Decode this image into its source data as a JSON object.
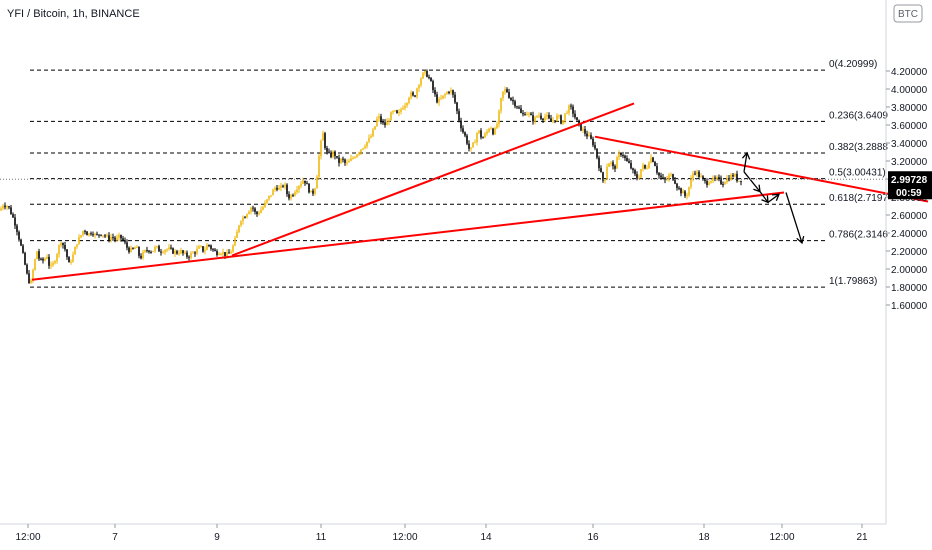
{
  "chart_data": {
    "type": "candlestick",
    "title": "YFI / Bitcoin, 1h, BINANCE",
    "currency_button": "BTC",
    "ylim": [
      1.55,
      4.38
    ],
    "y_ticks": [
      "4.20000",
      "4.00000",
      "3.80000",
      "3.60000",
      "3.40000",
      "3.20000",
      "3.00000",
      "2.80000",
      "2.60000",
      "2.40000",
      "2.20000",
      "2.00000",
      "1.80000",
      "1.60000"
    ],
    "x_ticks": [
      "12:00",
      "7",
      "9",
      "11",
      "12:00",
      "14",
      "16",
      "18",
      "12:00",
      "21"
    ],
    "last_price": "2.99728",
    "countdown": "00:59",
    "colors": {
      "up_candle": "#f0b90b",
      "down_candle": "#000000",
      "trendline": "#ff0000",
      "fib_line": "#000000",
      "price_badge": "#000000",
      "current_price_line": "#555555"
    },
    "fib_levels": [
      {
        "label": "0(4.20999)",
        "value": 4.20999
      },
      {
        "label": "0.236(3.6409",
        "value": 3.6409
      },
      {
        "label": "0.382(3.2888",
        "value": 3.2888
      },
      {
        "label": "0.5(3.00431)",
        "value": 3.00431
      },
      {
        "label": "0.618(2.7197",
        "value": 2.7197
      },
      {
        "label": "0.786(2.3146",
        "value": 2.3146
      },
      {
        "label": "1(1.79863)",
        "value": 1.79863
      }
    ],
    "price_path": [
      [
        0,
        2.65
      ],
      [
        3,
        2.72
      ],
      [
        8,
        2.7
      ],
      [
        12,
        2.6
      ],
      [
        16,
        2.48
      ],
      [
        20,
        2.3
      ],
      [
        24,
        2.1
      ],
      [
        28,
        1.88
      ],
      [
        31,
        1.85
      ],
      [
        34,
        2.05
      ],
      [
        37,
        2.2
      ],
      [
        40,
        2.08
      ],
      [
        44,
        2.1
      ],
      [
        47,
        2.15
      ],
      [
        50,
        2.0
      ],
      [
        53,
        2.05
      ],
      [
        57,
        2.18
      ],
      [
        61,
        2.32
      ],
      [
        65,
        2.22
      ],
      [
        69,
        2.05
      ],
      [
        73,
        2.15
      ],
      [
        77,
        2.3
      ],
      [
        80,
        2.35
      ],
      [
        84,
        2.45
      ],
      [
        88,
        2.38
      ],
      [
        92,
        2.42
      ],
      [
        96,
        2.36
      ],
      [
        100,
        2.4
      ],
      [
        104,
        2.38
      ],
      [
        108,
        2.34
      ],
      [
        112,
        2.36
      ],
      [
        116,
        2.32
      ],
      [
        120,
        2.36
      ],
      [
        124,
        2.3
      ],
      [
        128,
        2.22
      ],
      [
        132,
        2.2
      ],
      [
        136,
        2.25
      ],
      [
        140,
        2.12
      ],
      [
        144,
        2.18
      ],
      [
        148,
        2.22
      ],
      [
        152,
        2.2
      ],
      [
        156,
        2.24
      ],
      [
        160,
        2.2
      ],
      [
        164,
        2.22
      ],
      [
        168,
        2.22
      ],
      [
        172,
        2.2
      ],
      [
        176,
        2.18
      ],
      [
        180,
        2.2
      ],
      [
        184,
        2.16
      ],
      [
        188,
        2.14
      ],
      [
        192,
        2.17
      ],
      [
        196,
        2.2
      ],
      [
        200,
        2.24
      ],
      [
        204,
        2.2
      ],
      [
        208,
        2.28
      ],
      [
        212,
        2.22
      ],
      [
        216,
        2.18
      ],
      [
        220,
        2.2
      ],
      [
        224,
        2.17
      ],
      [
        228,
        2.15
      ],
      [
        232,
        2.22
      ],
      [
        236,
        2.35
      ],
      [
        240,
        2.55
      ],
      [
        244,
        2.58
      ],
      [
        248,
        2.65
      ],
      [
        252,
        2.7
      ],
      [
        256,
        2.6
      ],
      [
        260,
        2.65
      ],
      [
        264,
        2.7
      ],
      [
        268,
        2.78
      ],
      [
        272,
        2.85
      ],
      [
        276,
        2.92
      ],
      [
        280,
        2.88
      ],
      [
        284,
        2.95
      ],
      [
        288,
        2.8
      ],
      [
        292,
        2.82
      ],
      [
        296,
        2.9
      ],
      [
        300,
        2.95
      ],
      [
        304,
        3.0
      ],
      [
        308,
        2.9
      ],
      [
        312,
        2.82
      ],
      [
        316,
        2.95
      ],
      [
        320,
        3.35
      ],
      [
        323,
        3.5
      ],
      [
        326,
        3.3
      ],
      [
        330,
        3.25
      ],
      [
        334,
        3.3
      ],
      [
        338,
        3.18
      ],
      [
        342,
        3.22
      ],
      [
        346,
        3.16
      ],
      [
        350,
        3.2
      ],
      [
        354,
        3.25
      ],
      [
        358,
        3.3
      ],
      [
        362,
        3.35
      ],
      [
        366,
        3.4
      ],
      [
        370,
        3.45
      ],
      [
        374,
        3.55
      ],
      [
        378,
        3.7
      ],
      [
        382,
        3.62
      ],
      [
        386,
        3.6
      ],
      [
        390,
        3.7
      ],
      [
        394,
        3.75
      ],
      [
        398,
        3.7
      ],
      [
        402,
        3.8
      ],
      [
        406,
        3.85
      ],
      [
        410,
        3.95
      ],
      [
        414,
        3.9
      ],
      [
        418,
        4.05
      ],
      [
        422,
        4.15
      ],
      [
        426,
        4.18
      ],
      [
        430,
        4.1
      ],
      [
        434,
        3.95
      ],
      [
        438,
        3.85
      ],
      [
        442,
        3.9
      ],
      [
        446,
        3.95
      ],
      [
        450,
        4.0
      ],
      [
        454,
        3.9
      ],
      [
        458,
        3.7
      ],
      [
        462,
        3.55
      ],
      [
        466,
        3.45
      ],
      [
        470,
        3.3
      ],
      [
        474,
        3.4
      ],
      [
        478,
        3.55
      ],
      [
        482,
        3.45
      ],
      [
        486,
        3.5
      ],
      [
        490,
        3.6
      ],
      [
        494,
        3.5
      ],
      [
        498,
        3.65
      ],
      [
        502,
        3.95
      ],
      [
        506,
        4.0
      ],
      [
        510,
        3.9
      ],
      [
        514,
        3.85
      ],
      [
        518,
        3.8
      ],
      [
        522,
        3.7
      ],
      [
        526,
        3.75
      ],
      [
        530,
        3.7
      ],
      [
        534,
        3.65
      ],
      [
        538,
        3.72
      ],
      [
        542,
        3.68
      ],
      [
        546,
        3.7
      ],
      [
        550,
        3.64
      ],
      [
        554,
        3.66
      ],
      [
        558,
        3.7
      ],
      [
        562,
        3.62
      ],
      [
        566,
        3.75
      ],
      [
        570,
        3.8
      ],
      [
        574,
        3.72
      ],
      [
        578,
        3.6
      ],
      [
        582,
        3.55
      ],
      [
        586,
        3.5
      ],
      [
        590,
        3.45
      ],
      [
        594,
        3.38
      ],
      [
        598,
        3.2
      ],
      [
        601,
        3.05
      ],
      [
        604,
        2.95
      ],
      [
        607,
        3.15
      ],
      [
        610,
        3.2
      ],
      [
        614,
        3.1
      ],
      [
        618,
        3.25
      ],
      [
        622,
        3.3
      ],
      [
        626,
        3.2
      ],
      [
        630,
        3.15
      ],
      [
        634,
        3.05
      ],
      [
        638,
        3.0
      ],
      [
        642,
        3.15
      ],
      [
        646,
        3.1
      ],
      [
        650,
        3.25
      ],
      [
        654,
        3.2
      ],
      [
        658,
        3.05
      ],
      [
        662,
        3.0
      ],
      [
        666,
        2.98
      ],
      [
        670,
        3.05
      ],
      [
        674,
        3.0
      ],
      [
        678,
        2.9
      ],
      [
        682,
        2.85
      ],
      [
        686,
        2.8
      ],
      [
        690,
        2.95
      ],
      [
        694,
        3.1
      ],
      [
        698,
        3.05
      ],
      [
        702,
        3.0
      ],
      [
        706,
        2.95
      ],
      [
        710,
        3.0
      ],
      [
        714,
        2.98
      ],
      [
        718,
        3.0
      ],
      [
        722,
        2.95
      ],
      [
        726,
        3.0
      ],
      [
        730,
        3.02
      ],
      [
        734,
        3.05
      ],
      [
        738,
        2.98
      ],
      [
        741,
        2.99728
      ]
    ],
    "trendlines": [
      {
        "from": [
          32,
          1.88
        ],
        "to": [
          784,
          2.85
        ]
      },
      {
        "from": [
          232,
          2.15
        ],
        "to": [
          634,
          3.84
        ]
      },
      {
        "from": [
          595,
          3.47
        ],
        "to": [
          928,
          2.75
        ]
      }
    ],
    "projection_arrows": [
      {
        "from": [
          744,
          3.08
        ],
        "to": [
          747,
          3.29
        ]
      },
      {
        "from": [
          744,
          3.08
        ],
        "to": [
          760,
          2.86
        ]
      },
      {
        "from": [
          760,
          2.86
        ],
        "to": [
          768,
          2.74
        ]
      },
      {
        "from": [
          768,
          2.74
        ],
        "to": [
          779,
          2.83
        ]
      },
      {
        "from": [
          786,
          2.85
        ],
        "to": [
          802,
          2.29
        ]
      }
    ]
  }
}
